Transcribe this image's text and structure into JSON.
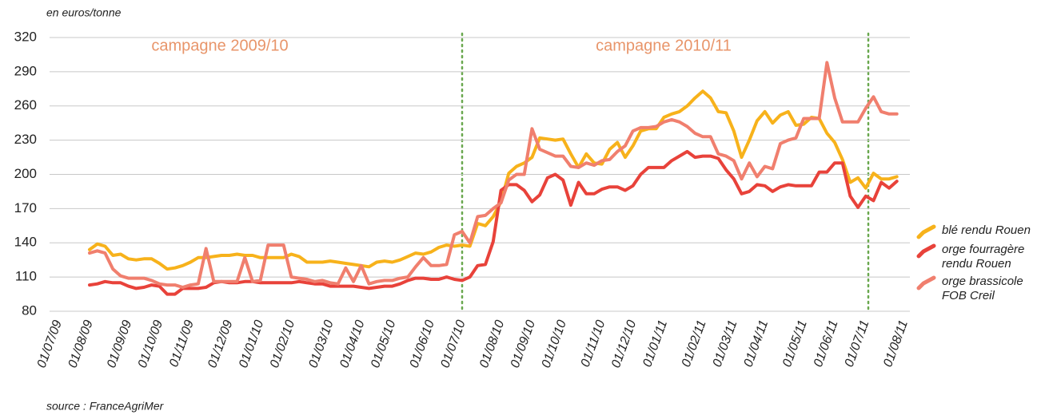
{
  "chart_data": {
    "type": "line",
    "y_axis_label": "en euros/tonne",
    "source": "source : FranceAgriMer",
    "annotations": [
      "campagne 2009/10",
      "campagne 2010/11"
    ],
    "categories": [
      "01/07/09",
      null,
      null,
      null,
      "01/08/09",
      null,
      null,
      null,
      null,
      "01/09/09",
      null,
      null,
      null,
      "01/10/09",
      null,
      null,
      null,
      "01/11/09",
      null,
      null,
      null,
      null,
      "01/12/09",
      null,
      null,
      null,
      "01/01/10",
      null,
      null,
      null,
      "01/02/10",
      null,
      null,
      null,
      null,
      "01/03/10",
      null,
      null,
      null,
      "01/04/10",
      null,
      null,
      null,
      "01/05/10",
      null,
      null,
      null,
      null,
      "01/06/10",
      null,
      null,
      null,
      "01/07/10",
      null,
      null,
      null,
      null,
      "01/08/10",
      null,
      null,
      null,
      "01/09/10",
      null,
      null,
      null,
      "01/10/10",
      null,
      null,
      null,
      null,
      "01/11/10",
      null,
      null,
      null,
      "01/12/10",
      null,
      null,
      null,
      "01/01/11",
      null,
      null,
      null,
      null,
      "01/02/11",
      null,
      null,
      null,
      "01/03/11",
      null,
      null,
      null,
      "01/04/11",
      null,
      null,
      null,
      null,
      "01/05/11",
      null,
      null,
      null,
      "01/06/11",
      null,
      null,
      null,
      "01/07/11",
      null,
      null,
      null,
      null,
      "01/08/11"
    ],
    "series": [
      {
        "name": "blé rendu Rouen",
        "color": "#f7b21b",
        "values": [
          null,
          null,
          null,
          null,
          134,
          139,
          137,
          129,
          130,
          126,
          125,
          126,
          126,
          122,
          117,
          118,
          120,
          123,
          127,
          127,
          128,
          129,
          129,
          130,
          129,
          129,
          127,
          127,
          127,
          127,
          130,
          128,
          123,
          123,
          123,
          124,
          123,
          122,
          121,
          120,
          119,
          123,
          124,
          123,
          125,
          128,
          131,
          130,
          132,
          136,
          138,
          137,
          138,
          137,
          157,
          155,
          163,
          176,
          201,
          207,
          210,
          215,
          232,
          231,
          230,
          231,
          218,
          206,
          218,
          210,
          209,
          222,
          228,
          215,
          225,
          238,
          240,
          240,
          250,
          253,
          255,
          260,
          267,
          273,
          267,
          255,
          254,
          238,
          215,
          230,
          247,
          255,
          245,
          252,
          255,
          243,
          244,
          250,
          249,
          236,
          228,
          213,
          193,
          197,
          188,
          201,
          196,
          196,
          198,
          null
        ]
      },
      {
        "name": "orge fourragère rendu Rouen",
        "color": "#e8423a",
        "values": [
          null,
          null,
          null,
          null,
          103,
          104,
          106,
          105,
          105,
          102,
          100,
          101,
          103,
          102,
          95,
          95,
          100,
          100,
          100,
          101,
          105,
          106,
          105,
          105,
          106,
          106,
          105,
          105,
          105,
          105,
          105,
          106,
          105,
          104,
          104,
          102,
          102,
          102,
          102,
          101,
          100,
          101,
          102,
          102,
          104,
          107,
          109,
          109,
          108,
          108,
          110,
          108,
          107,
          110,
          120,
          121,
          141,
          186,
          191,
          191,
          186,
          176,
          182,
          197,
          200,
          195,
          173,
          193,
          183,
          183,
          187,
          189,
          189,
          186,
          190,
          200,
          206,
          206,
          206,
          212,
          216,
          220,
          215,
          216,
          216,
          214,
          204,
          196,
          183,
          185,
          191,
          190,
          185,
          189,
          191,
          190,
          190,
          190,
          202,
          202,
          210,
          210,
          181,
          171,
          181,
          177,
          193,
          188,
          194,
          null
        ]
      },
      {
        "name": "orge brassicole FOB Creil",
        "color": "#f07f6e",
        "values": [
          null,
          null,
          null,
          null,
          131,
          133,
          131,
          117,
          111,
          109,
          109,
          109,
          107,
          104,
          103,
          103,
          101,
          103,
          104,
          135,
          106,
          106,
          106,
          106,
          127,
          106,
          107,
          138,
          138,
          138,
          110,
          109,
          108,
          106,
          107,
          105,
          104,
          118,
          106,
          120,
          104,
          106,
          107,
          107,
          109,
          110,
          119,
          127,
          120,
          120,
          121,
          147,
          150,
          140,
          163,
          164,
          170,
          175,
          195,
          200,
          200,
          240,
          222,
          219,
          216,
          216,
          207,
          206,
          210,
          208,
          212,
          213,
          220,
          225,
          238,
          241,
          241,
          242,
          246,
          248,
          246,
          242,
          236,
          233,
          233,
          218,
          216,
          212,
          196,
          210,
          198,
          207,
          205,
          227,
          230,
          232,
          249,
          249,
          249,
          298,
          267,
          246,
          246,
          246,
          258,
          268,
          255,
          253,
          253,
          null
        ]
      }
    ],
    "ylim": [
      80,
      320
    ],
    "yticks": [
      80,
      110,
      140,
      170,
      200,
      230,
      260,
      290,
      320
    ],
    "grid": true,
    "legend": "right"
  }
}
